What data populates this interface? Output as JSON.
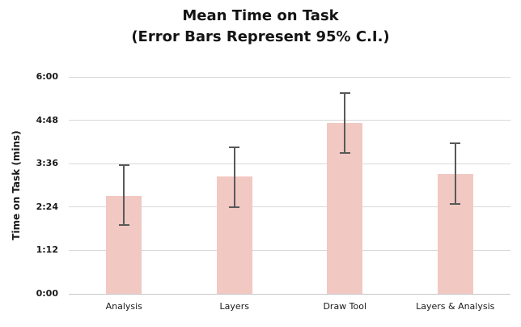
{
  "chart_data": {
    "type": "bar",
    "title": "Mean Time on Task",
    "subtitle": "(Error Bars Represent 95% C.I.)",
    "ylabel": "Time on Task (mins)",
    "xlabel": "",
    "ylim_seconds": [
      0,
      360
    ],
    "grid": "horizontal",
    "legend": "none",
    "yticks": [
      {
        "seconds": 0,
        "label": "0:00"
      },
      {
        "seconds": 72,
        "label": "1:12"
      },
      {
        "seconds": 144,
        "label": "2:24"
      },
      {
        "seconds": 216,
        "label": "3:36"
      },
      {
        "seconds": 288,
        "label": "4:48"
      },
      {
        "seconds": 360,
        "label": "6:00"
      }
    ],
    "categories": [
      "Analysis",
      "Layers",
      "Draw Tool",
      "Layers & Analysis"
    ],
    "bars": [
      {
        "label": "Analysis",
        "mean_seconds": 162,
        "mean_label": "2:42",
        "ci_low_seconds": 113,
        "ci_low_label": "1:53",
        "ci_high_seconds": 215,
        "ci_high_label": "3:35"
      },
      {
        "label": "Layers",
        "mean_seconds": 195,
        "mean_label": "3:15",
        "ci_low_seconds": 143,
        "ci_low_label": "2:23",
        "ci_high_seconds": 245,
        "ci_high_label": "4:05"
      },
      {
        "label": "Draw Tool",
        "mean_seconds": 283,
        "mean_label": "4:43",
        "ci_low_seconds": 233,
        "ci_low_label": "3:53",
        "ci_high_seconds": 335,
        "ci_high_label": "5:35"
      },
      {
        "label": "Layers & Analysis",
        "mean_seconds": 199,
        "mean_label": "3:19",
        "ci_low_seconds": 148,
        "ci_low_label": "2:28",
        "ci_high_seconds": 251,
        "ci_high_label": "4:11"
      }
    ],
    "colors": {
      "bar_fill": "#F2C8C2",
      "error_bar": "#595959",
      "gridline": "#D9D9D9",
      "axis_line": "#C6C6C6",
      "text": "#1A1A1A"
    }
  }
}
